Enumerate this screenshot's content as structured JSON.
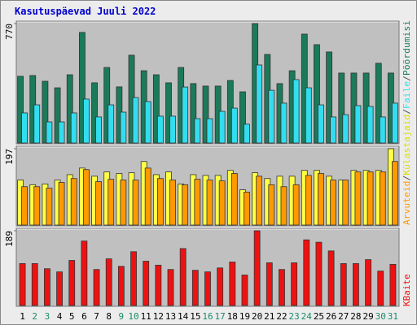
{
  "title": "Kasutuspäevad Juuli 2022",
  "legend_separator": "/",
  "chart_data": [
    {
      "type": "bar",
      "ylim": [
        0,
        770
      ],
      "yticks": [
        770
      ],
      "series": [
        {
          "name": "Pöördumisi",
          "color": "#1b7a5a",
          "values": [
            430,
            435,
            398,
            356,
            440,
            713,
            388,
            487,
            362,
            566,
            466,
            440,
            388,
            487,
            383,
            367,
            367,
            403,
            330,
            770,
            571,
            383,
            466,
            702,
            634,
            587,
            451,
            451,
            451,
            514,
            451
          ]
        },
        {
          "name": "Faile",
          "color": "#33ddf0",
          "values": [
            194,
            246,
            136,
            136,
            194,
            283,
            168,
            246,
            199,
            293,
            267,
            173,
            173,
            361,
            157,
            157,
            204,
            225,
            121,
            503,
            340,
            257,
            409,
            356,
            246,
            168,
            183,
            241,
            236,
            168,
            257
          ]
        }
      ]
    },
    {
      "type": "bar",
      "ylim": [
        0,
        197
      ],
      "yticks": [
        197
      ],
      "series": [
        {
          "name": "Külastajaid",
          "color": "#ffff44",
          "values": [
            116,
            104,
            106,
            116,
            130,
            147,
            126,
            137,
            133,
            135,
            164,
            130,
            137,
            106,
            130,
            128,
            128,
            141,
            91,
            135,
            120,
            126,
            126,
            141,
            141,
            126,
            116,
            141,
            141,
            141,
            197
          ]
        },
        {
          "name": "Arvuteid",
          "color": "#ff9900",
          "values": [
            99,
            99,
            95,
            110,
            120,
            143,
            112,
            118,
            116,
            116,
            147,
            120,
            116,
            104,
            118,
            116,
            114,
            133,
            85,
            126,
            104,
            99,
            104,
            128,
            133,
            116,
            116,
            137,
            137,
            137,
            164
          ]
        }
      ]
    },
    {
      "type": "bar",
      "ylim": [
        0,
        189
      ],
      "yticks": [
        189
      ],
      "categories": [
        "1",
        "2",
        "3",
        "4",
        "5",
        "6",
        "7",
        "8",
        "9",
        "10",
        "11",
        "12",
        "13",
        "14",
        "15",
        "16",
        "17",
        "18",
        "19",
        "20",
        "21",
        "22",
        "23",
        "24",
        "25",
        "26",
        "27",
        "28",
        "29",
        "30",
        "31"
      ],
      "label_colors": [
        "#000000",
        "#1b8a6a",
        "#1b8a6a",
        "#000000",
        "#000000",
        "#000000",
        "#000000",
        "#000000",
        "#1b8a6a",
        "#1b8a6a",
        "#000000",
        "#000000",
        "#000000",
        "#000000",
        "#000000",
        "#1b8a6a",
        "#1b8a6a",
        "#000000",
        "#000000",
        "#000000",
        "#000000",
        "#000000",
        "#1b8a6a",
        "#1b8a6a",
        "#000000",
        "#000000",
        "#000000",
        "#000000",
        "#000000",
        "#1b8a6a",
        "#1b8a6a"
      ],
      "series": [
        {
          "name": "KBaite",
          "color": "#ee1111",
          "values": [
            106,
            106,
            93,
            85,
            114,
            163,
            91,
            118,
            99,
            136,
            112,
            102,
            91,
            144,
            89,
            85,
            95,
            110,
            77,
            189,
            108,
            91,
            108,
            166,
            160,
            138,
            106,
            106,
            116,
            87,
            104
          ]
        }
      ]
    }
  ]
}
